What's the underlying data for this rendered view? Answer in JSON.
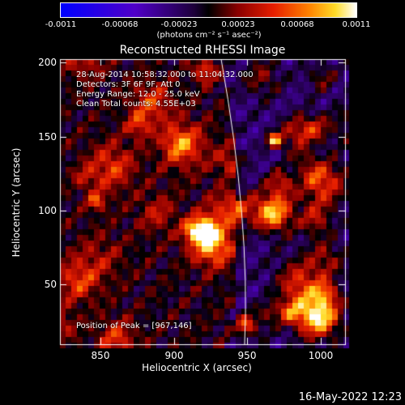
{
  "colorbar": {
    "ticks": [
      "-0.0011",
      "-0.00068",
      "-0.00023",
      "0.00023",
      "0.00068",
      "0.0011"
    ],
    "units": "(photons cm⁻² s⁻¹ asec⁻²)"
  },
  "title": "Reconstructed RHESSI Image",
  "annotations": {
    "time": "28-Aug-2014 10:58:32.000 to 11:04:32.000",
    "detectors": "Detectors: 3F 6F 9F, Att 0",
    "energy": "Energy Range: 12.0 - 25.0 keV",
    "clean": "Clean     Total counts: 4.55E+03",
    "peak": "Position of Peak = [967,146]"
  },
  "axes": {
    "xlabel": "Heliocentric X (arcsec)",
    "ylabel": "Heliocentric Y (arcsec)",
    "xticks": [
      "850",
      "900",
      "950",
      "1000"
    ],
    "yticks": [
      "200",
      "150",
      "100",
      "50"
    ]
  },
  "timestamp": "16-May-2022 12:23"
}
